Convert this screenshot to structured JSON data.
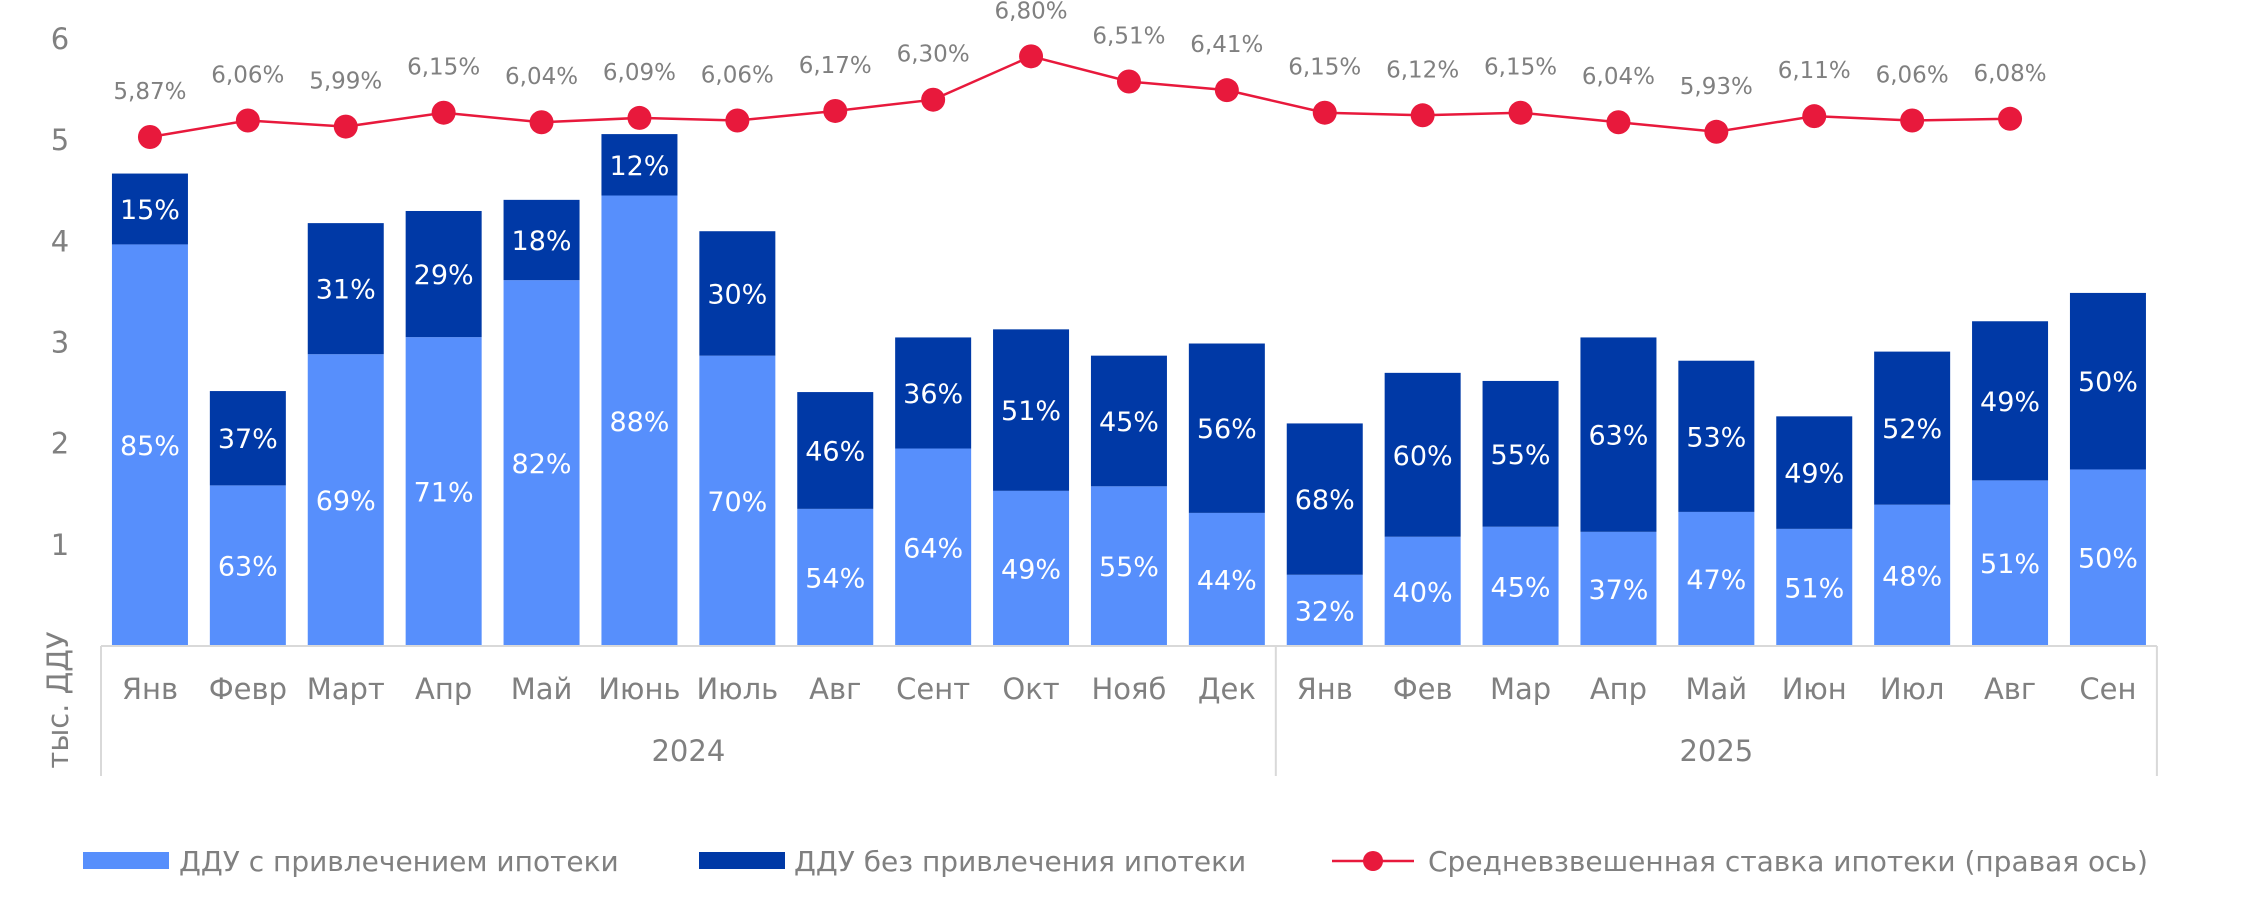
{
  "chart_data": {
    "type": "bar",
    "stacked": true,
    "y_axis_label": "тыс. ДДУ",
    "ylim": [
      0,
      6
    ],
    "y_ticks": [
      "1",
      "2",
      "3",
      "4",
      "5",
      "6"
    ],
    "right_axis_range": [
      0,
      7
    ],
    "right_axis_visible": false,
    "grid": false,
    "legend_position": "bottom",
    "groups": [
      {
        "label": "2024",
        "categories": [
          "Янв",
          "Февр",
          "Март",
          "Апр",
          "Май",
          "Июнь",
          "Июль",
          "Авг",
          "Сент",
          "Окт",
          "Нояб",
          "Дек"
        ]
      },
      {
        "label": "2025",
        "categories": [
          "Янв",
          "Фев",
          "Мар",
          "Апр",
          "Май",
          "Июн",
          "Июл",
          "Авг",
          "Сен"
        ]
      }
    ],
    "totals": [
      4.67,
      2.52,
      4.18,
      4.3,
      4.41,
      5.06,
      4.1,
      2.51,
      3.05,
      3.13,
      2.87,
      2.99,
      2.2,
      2.7,
      2.62,
      3.05,
      2.82,
      2.27,
      2.91,
      3.21,
      3.49
    ],
    "series": [
      {
        "name": "ДДУ с привлечением ипотеки",
        "color": "#578ffc",
        "share_labels": [
          "85%",
          "63%",
          "69%",
          "71%",
          "82%",
          "88%",
          "70%",
          "54%",
          "64%",
          "49%",
          "55%",
          "44%",
          "32%",
          "40%",
          "45%",
          "37%",
          "47%",
          "51%",
          "48%",
          "51%",
          "50%"
        ],
        "shares": [
          85,
          63,
          69,
          71,
          82,
          88,
          70,
          54,
          64,
          49,
          55,
          44,
          32,
          40,
          45,
          37,
          47,
          51,
          48,
          51,
          50
        ]
      },
      {
        "name": "ДДУ без привлечения ипотеки",
        "color": "#0039a6",
        "share_labels": [
          "15%",
          "37%",
          "31%",
          "29%",
          "18%",
          "12%",
          "30%",
          "46%",
          "36%",
          "51%",
          "45%",
          "56%",
          "68%",
          "60%",
          "55%",
          "63%",
          "53%",
          "49%",
          "52%",
          "49%",
          "50%"
        ],
        "shares": [
          15,
          37,
          31,
          29,
          18,
          12,
          30,
          46,
          36,
          51,
          45,
          56,
          68,
          60,
          55,
          63,
          53,
          49,
          52,
          49,
          50
        ]
      },
      {
        "name": "Средневзвешенная ставка ипотеки (правая ось)",
        "type": "line",
        "axis": "right",
        "color": "#e8193c",
        "values": [
          5.87,
          6.06,
          5.99,
          6.15,
          6.04,
          6.09,
          6.06,
          6.17,
          6.3,
          6.8,
          6.51,
          6.41,
          6.15,
          6.12,
          6.15,
          6.04,
          5.93,
          6.11,
          6.06,
          6.08
        ],
        "labels": [
          "5,87%",
          "6,06%",
          "5,99%",
          "6,15%",
          "6,04%",
          "6,09%",
          "6,06%",
          "6,17%",
          "6,30%",
          "6,80%",
          "6,51%",
          "6,41%",
          "6,15%",
          "6,12%",
          "6,15%",
          "6,04%",
          "5,93%",
          "6,11%",
          "6,06%",
          "6,08%"
        ]
      }
    ]
  }
}
